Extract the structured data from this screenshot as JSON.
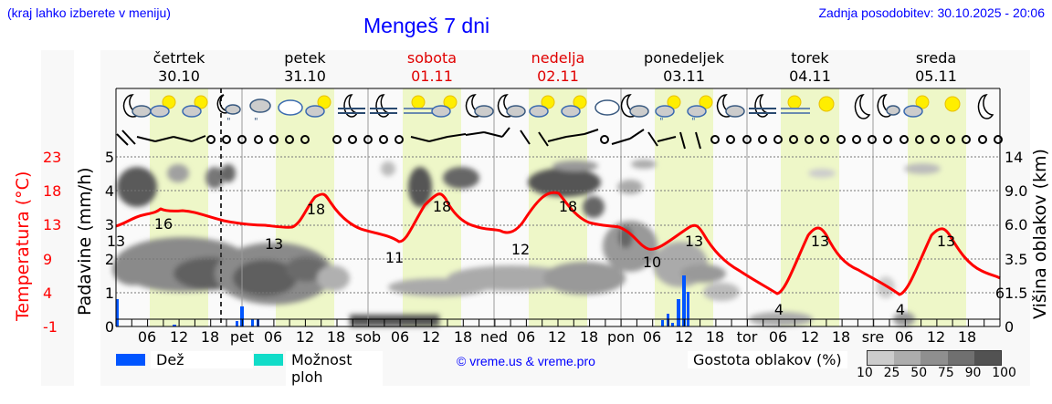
{
  "header": {
    "location_hint": "(kraj lahko izberete v meniju)",
    "title": "Mengeš 7 dni",
    "last_update": "Zadnja posodobitev: 30.10.2025 - 20:06"
  },
  "days": [
    {
      "name": "četrtek",
      "date": "30.10",
      "weekend": false
    },
    {
      "name": "petek",
      "date": "31.10",
      "weekend": false
    },
    {
      "name": "sobota",
      "date": "01.11",
      "weekend": true
    },
    {
      "name": "nedelja",
      "date": "02.11",
      "weekend": true
    },
    {
      "name": "ponedeljek",
      "date": "03.11",
      "weekend": false
    },
    {
      "name": "torek",
      "date": "04.11",
      "weekend": false
    },
    {
      "name": "sreda",
      "date": "05.11",
      "weekend": false
    }
  ],
  "axes": {
    "left_precip_title": "Padavine (mm/h)",
    "left_temp_title": "Temperatura (°C)",
    "right_title": "Višina oblakov (km)",
    "precip_ticks": [
      "0",
      "1",
      "2",
      "3",
      "4",
      "5"
    ],
    "temp_ticks": [
      "-1",
      "4",
      "9",
      "13",
      "18",
      "23"
    ],
    "cloud_height_ticks": [
      "0",
      "1.5",
      "3.5",
      "6.0",
      "9.0",
      "14"
    ],
    "x_ticks": [
      "06",
      "12",
      "18",
      "pet",
      "06",
      "12",
      "18",
      "sob",
      "06",
      "12",
      "18",
      "ned",
      "06",
      "12",
      "18",
      "pon",
      "06",
      "12",
      "18",
      "tor",
      "06",
      "12",
      "18",
      "sre",
      "06",
      "12",
      "18"
    ]
  },
  "legend": {
    "rain_label": "Dež",
    "rain_color": "#0055ff",
    "shower_label": "Možnost ploh",
    "shower_color": "#11dcc8",
    "copyright": "© vreme.us & vreme.pro",
    "cloud_density_label": "Gostota oblakov (%)",
    "cloud_density_ticks": [
      "10",
      "25",
      "50",
      "75",
      "90",
      "100"
    ],
    "cloud_density_colors": [
      "#cccccc",
      "#adadad",
      "#8f8f8f",
      "#707070",
      "#525252"
    ]
  },
  "colors": {
    "temperature_line": "#ff0000",
    "daytime_band": "#eef7c8",
    "title_blue": "#0000ff",
    "weekend_red": "#e00000"
  },
  "weather_icons": [
    "moon-cloud",
    "sun-cloud",
    "sun-cloud",
    "moon-cloud-rain",
    "cloud-rain",
    "cloud-overcast",
    "cloud-overcast",
    "sun-cloud",
    "moon-fog",
    "moon-fog",
    "sun-fog",
    "sun-cloud",
    "moon-cloud",
    "moon-cloud",
    "sun-cloud",
    "sun-cloud",
    "cloud-overcast",
    "moon-cloud",
    "sun-cloud-rain",
    "sun-cloud-rain",
    "moon-cloud",
    "moon-fog",
    "sun-fog",
    "sun",
    "moon",
    "moon-cloud",
    "sun-cloud",
    "sun",
    "moon"
  ],
  "chart_data": {
    "type": "line",
    "title": "Mengeš 7 dni",
    "xlabel": "",
    "ylabel": "Temperatura (°C)",
    "x_unit": "hours since 30.10 00:00",
    "ylim_temp": [
      -1,
      23
    ],
    "ylim_precip": [
      0,
      5
    ],
    "current_time_marker_hour": 20,
    "temperature_series": {
      "name": "Temperatura (°C)",
      "x": [
        0,
        6,
        9,
        12,
        15,
        20,
        24,
        30,
        36,
        39,
        42,
        48,
        54,
        60,
        63,
        66,
        72,
        78,
        84,
        87,
        90,
        96,
        102,
        108,
        111,
        114,
        120,
        126,
        132,
        135,
        138,
        144,
        150,
        156,
        159,
        162,
        168
      ],
      "values": [
        13,
        15,
        16,
        15.8,
        15.5,
        14,
        13.5,
        13,
        17,
        18,
        15,
        12,
        11,
        17,
        18,
        15,
        12.5,
        12,
        17,
        18,
        15,
        13,
        10,
        12,
        13,
        11,
        7,
        4,
        10,
        13,
        11,
        6,
        4,
        10,
        13,
        10,
        6
      ],
      "labels": [
        {
          "hour": 0,
          "value": "13"
        },
        {
          "hour": 12,
          "value": "16"
        },
        {
          "hour": 40,
          "value": "13"
        },
        {
          "hour": 52,
          "value": "18"
        },
        {
          "hour": 73,
          "value": "11"
        },
        {
          "hour": 88,
          "value": "18"
        },
        {
          "hour": 110,
          "value": "12"
        },
        {
          "hour": 124,
          "value": "18"
        },
        {
          "hour": 143,
          "value": "10"
        },
        {
          "hour": 155,
          "value": "13"
        },
        {
          "hour": 172,
          "value": "4"
        },
        {
          "hour": 180,
          "value": "13"
        },
        {
          "hour": 196,
          "value": "4"
        },
        {
          "hour": 205,
          "value": "13"
        },
        {
          "hour": 227,
          "value": "6"
        }
      ]
    },
    "precip_series": {
      "name": "Dež (mm/h)",
      "bars": [
        {
          "hour": 0,
          "value": 0.8
        },
        {
          "hour": 11,
          "value": 0.05
        },
        {
          "hour": 23,
          "value": 0.1
        },
        {
          "hour": 24,
          "value": 0.6
        },
        {
          "hour": 26,
          "value": 0.25
        },
        {
          "hour": 27,
          "value": 0.25
        },
        {
          "hour": 129,
          "value": 0.2
        },
        {
          "hour": 130,
          "value": 0.4
        },
        {
          "hour": 131,
          "value": 0.1
        },
        {
          "hour": 133,
          "value": 0.85
        },
        {
          "hour": 134,
          "value": 1.5
        },
        {
          "hour": 135,
          "value": 1.0
        }
      ]
    }
  }
}
